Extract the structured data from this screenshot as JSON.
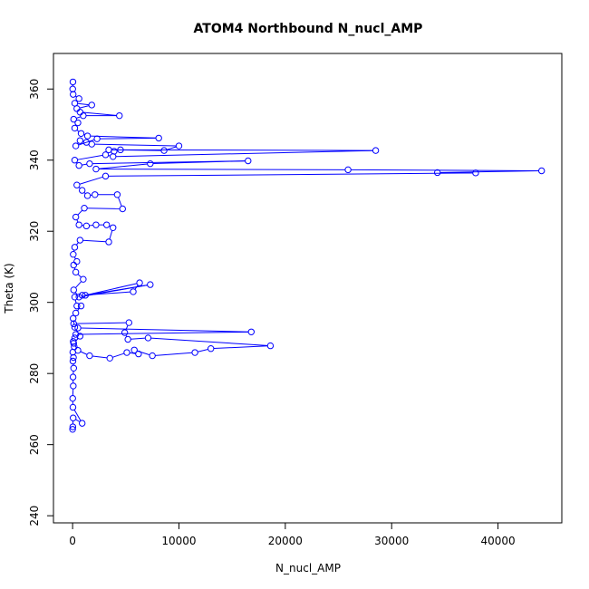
{
  "chart_data": {
    "type": "line",
    "title": "ATOM4 Northbound N_nucl_AMP",
    "xlabel": "N_nucl_AMP",
    "ylabel": "Theta (K)",
    "xlim": [
      -1800,
      46000
    ],
    "ylim": [
      238,
      370
    ],
    "x_ticks": [
      0,
      10000,
      20000,
      30000,
      40000
    ],
    "y_ticks": [
      240,
      260,
      280,
      300,
      320,
      340,
      360
    ],
    "x_tick_labels": [
      "0",
      "10000",
      "20000",
      "30000",
      "40000"
    ],
    "y_tick_labels": [
      "240",
      "260",
      "280",
      "300",
      "320",
      "340",
      "360"
    ],
    "grid": false,
    "series": [
      {
        "color": "#0000ff",
        "marker": "open-circle",
        "points": [
          {
            "x": 0,
            "y": 264.3
          },
          {
            "x": 20,
            "y": 265.0
          },
          {
            "x": 50,
            "y": 267.5
          },
          {
            "x": 900,
            "y": 266.0
          },
          {
            "x": 30,
            "y": 270.5
          },
          {
            "x": 10,
            "y": 273.0
          },
          {
            "x": 60,
            "y": 276.5
          },
          {
            "x": 40,
            "y": 279.0
          },
          {
            "x": 100,
            "y": 281.5
          },
          {
            "x": 30,
            "y": 283.5
          },
          {
            "x": 80,
            "y": 284.5
          },
          {
            "x": 20,
            "y": 286.0
          },
          {
            "x": 150,
            "y": 287.5
          },
          {
            "x": 60,
            "y": 289.0
          },
          {
            "x": 200,
            "y": 290.0
          },
          {
            "x": 300,
            "y": 291.0
          },
          {
            "x": 16800,
            "y": 291.7
          },
          {
            "x": 500,
            "y": 292.8
          },
          {
            "x": 100,
            "y": 294.0
          },
          {
            "x": 5300,
            "y": 294.3
          },
          {
            "x": 4900,
            "y": 291.5
          },
          {
            "x": 5200,
            "y": 289.6
          },
          {
            "x": 7100,
            "y": 290.0
          },
          {
            "x": 18600,
            "y": 287.8
          },
          {
            "x": 13000,
            "y": 287.0
          },
          {
            "x": 11500,
            "y": 285.9
          },
          {
            "x": 7500,
            "y": 285.0
          },
          {
            "x": 5800,
            "y": 286.6
          },
          {
            "x": 6200,
            "y": 285.5
          },
          {
            "x": 5100,
            "y": 285.9
          },
          {
            "x": 3500,
            "y": 284.3
          },
          {
            "x": 1600,
            "y": 285.0
          },
          {
            "x": 500,
            "y": 286.5
          },
          {
            "x": 100,
            "y": 288.5
          },
          {
            "x": 700,
            "y": 290.5
          },
          {
            "x": 200,
            "y": 293.0
          },
          {
            "x": 50,
            "y": 295.5
          },
          {
            "x": 300,
            "y": 297.0
          },
          {
            "x": 800,
            "y": 299.0
          },
          {
            "x": 400,
            "y": 299.0
          },
          {
            "x": 200,
            "y": 301.5
          },
          {
            "x": 900,
            "y": 302.0
          },
          {
            "x": 5700,
            "y": 303.0
          },
          {
            "x": 6300,
            "y": 305.5
          },
          {
            "x": 1200,
            "y": 302.0
          },
          {
            "x": 7300,
            "y": 305.0
          },
          {
            "x": 600,
            "y": 301.5
          },
          {
            "x": 100,
            "y": 303.5
          },
          {
            "x": 1000,
            "y": 306.5
          },
          {
            "x": 300,
            "y": 308.5
          },
          {
            "x": 100,
            "y": 310.5
          },
          {
            "x": 400,
            "y": 311.5
          },
          {
            "x": 60,
            "y": 313.5
          },
          {
            "x": 200,
            "y": 315.5
          },
          {
            "x": 700,
            "y": 317.5
          },
          {
            "x": 3400,
            "y": 317.0
          },
          {
            "x": 3800,
            "y": 321.0
          },
          {
            "x": 3200,
            "y": 321.8
          },
          {
            "x": 2200,
            "y": 321.8
          },
          {
            "x": 1300,
            "y": 321.5
          },
          {
            "x": 600,
            "y": 321.8
          },
          {
            "x": 300,
            "y": 324.0
          },
          {
            "x": 1100,
            "y": 326.5
          },
          {
            "x": 4700,
            "y": 326.3
          },
          {
            "x": 4200,
            "y": 330.3
          },
          {
            "x": 2100,
            "y": 330.3
          },
          {
            "x": 1400,
            "y": 330.0
          },
          {
            "x": 900,
            "y": 331.5
          },
          {
            "x": 400,
            "y": 333.0
          },
          {
            "x": 3100,
            "y": 335.5
          },
          {
            "x": 37900,
            "y": 336.4
          },
          {
            "x": 34300,
            "y": 336.5
          },
          {
            "x": 44100,
            "y": 337.0
          },
          {
            "x": 25900,
            "y": 337.3
          },
          {
            "x": 2200,
            "y": 337.5
          },
          {
            "x": 7300,
            "y": 339.0
          },
          {
            "x": 16500,
            "y": 339.8
          },
          {
            "x": 1600,
            "y": 339.0
          },
          {
            "x": 600,
            "y": 338.5
          },
          {
            "x": 200,
            "y": 340.0
          },
          {
            "x": 3100,
            "y": 341.5
          },
          {
            "x": 3800,
            "y": 341.0
          },
          {
            "x": 28500,
            "y": 342.7
          },
          {
            "x": 4500,
            "y": 342.9
          },
          {
            "x": 3900,
            "y": 342.5
          },
          {
            "x": 3400,
            "y": 342.9
          },
          {
            "x": 8600,
            "y": 342.7
          },
          {
            "x": 10000,
            "y": 344.0
          },
          {
            "x": 1800,
            "y": 344.5
          },
          {
            "x": 1300,
            "y": 345.0
          },
          {
            "x": 700,
            "y": 345.5
          },
          {
            "x": 300,
            "y": 344.0
          },
          {
            "x": 2300,
            "y": 346.0
          },
          {
            "x": 8100,
            "y": 346.2
          },
          {
            "x": 1400,
            "y": 346.8
          },
          {
            "x": 800,
            "y": 347.5
          },
          {
            "x": 200,
            "y": 349.0
          },
          {
            "x": 500,
            "y": 350.5
          },
          {
            "x": 100,
            "y": 351.5
          },
          {
            "x": 1000,
            "y": 352.5
          },
          {
            "x": 4400,
            "y": 352.5
          },
          {
            "x": 700,
            "y": 353.5
          },
          {
            "x": 400,
            "y": 354.5
          },
          {
            "x": 1800,
            "y": 355.5
          },
          {
            "x": 200,
            "y": 356.0
          },
          {
            "x": 600,
            "y": 357.3
          },
          {
            "x": 50,
            "y": 358.5
          },
          {
            "x": 10,
            "y": 360.0
          },
          {
            "x": 30,
            "y": 362.0
          }
        ]
      }
    ]
  }
}
